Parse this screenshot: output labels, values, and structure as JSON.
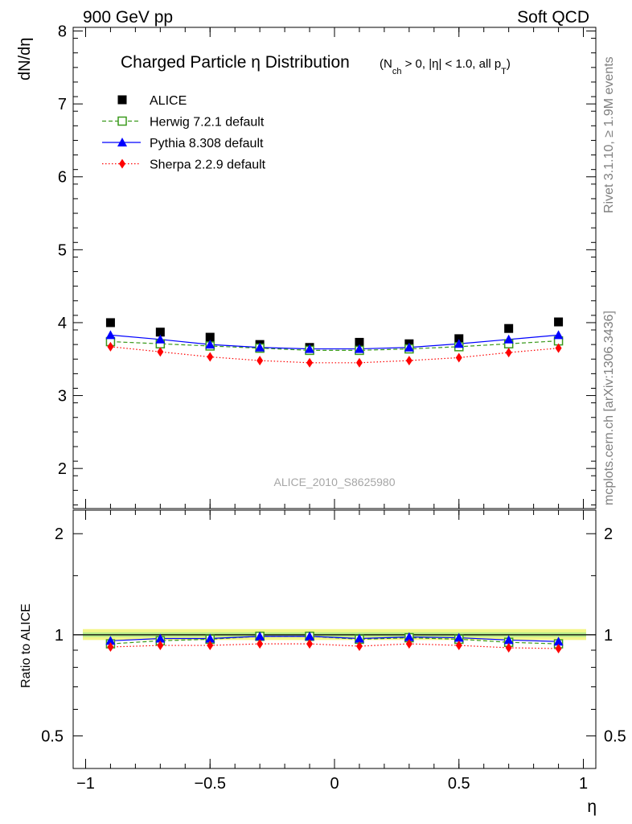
{
  "header": {
    "left": "900 GeV pp",
    "right": "Soft QCD"
  },
  "side": {
    "rivet": "Rivet 3.1.10, ≥ 1.9M events",
    "source": "mcplots.cern.ch [arXiv:1306.3436]"
  },
  "chart_data": [
    {
      "type": "scatter",
      "title_main": "Charged Particle η Distribution",
      "title_cut_parts": {
        "open": "(N",
        "sub1": "ch",
        "mid": " > 0, |η| < 1.0, all p",
        "sub2": "T",
        "close": ")"
      },
      "ylabel": "dN/dη",
      "xlabel": "η",
      "analysis": "ALICE_2010_S8625980",
      "xlim": [
        -1.05,
        1.05
      ],
      "ylim": [
        1.45,
        8.05
      ],
      "yticks": [
        2,
        3,
        4,
        5,
        6,
        7,
        8
      ],
      "x": [
        -0.9,
        -0.7,
        -0.5,
        -0.3,
        -0.1,
        0.1,
        0.3,
        0.5,
        0.7,
        0.9
      ],
      "series": [
        {
          "name": "ALICE",
          "color": "#000000",
          "marker": "square",
          "line": "none",
          "values": [
            4.0,
            3.87,
            3.8,
            3.7,
            3.66,
            3.73,
            3.71,
            3.78,
            3.92,
            4.01
          ]
        },
        {
          "name": "Herwig 7.2.1 default",
          "color": "#3a9a1c",
          "marker": "open-square",
          "line": "dashed",
          "values": [
            3.74,
            3.71,
            3.68,
            3.65,
            3.62,
            3.62,
            3.64,
            3.67,
            3.71,
            3.75
          ]
        },
        {
          "name": "Pythia 8.308 default",
          "color": "#0000ff",
          "marker": "triangle",
          "line": "solid",
          "values": [
            3.83,
            3.77,
            3.7,
            3.66,
            3.64,
            3.64,
            3.66,
            3.71,
            3.77,
            3.83
          ]
        },
        {
          "name": "Sherpa 2.2.9 default",
          "color": "#ff0000",
          "marker": "diamond",
          "line": "dotted",
          "values": [
            3.67,
            3.6,
            3.53,
            3.48,
            3.45,
            3.45,
            3.48,
            3.52,
            3.59,
            3.65
          ]
        }
      ]
    },
    {
      "type": "scatter",
      "ylabel": "Ratio to ALICE",
      "xlabel": "η",
      "log_y": true,
      "xlim": [
        -1.05,
        1.05
      ],
      "ylim": [
        0.4,
        2.35
      ],
      "yticks": [
        0.5,
        1,
        2
      ],
      "xticks": [
        -1,
        -0.5,
        0,
        0.5,
        1
      ],
      "xtick_labels": [
        "−1",
        "−0.5",
        "0",
        "0.5",
        "1"
      ],
      "x": [
        -0.9,
        -0.7,
        -0.5,
        -0.3,
        -0.1,
        0.1,
        0.3,
        0.5,
        0.7,
        0.9
      ],
      "band": {
        "yellow": [
          0.965,
          1.04
        ],
        "green": [
          0.985,
          1.017
        ]
      },
      "series": [
        {
          "name": "Herwig 7.2.1 default",
          "color": "#3a9a1c",
          "marker": "open-square",
          "line": "dashed",
          "values": [
            0.94,
            0.96,
            0.97,
            0.99,
            0.99,
            0.97,
            0.98,
            0.97,
            0.95,
            0.94
          ]
        },
        {
          "name": "Pythia 8.308 default",
          "color": "#0000ff",
          "marker": "triangle",
          "line": "solid",
          "values": [
            0.96,
            0.975,
            0.975,
            0.99,
            0.99,
            0.975,
            0.985,
            0.98,
            0.965,
            0.955
          ]
        },
        {
          "name": "Sherpa 2.2.9 default",
          "color": "#ff0000",
          "marker": "diamond",
          "line": "dotted",
          "values": [
            0.92,
            0.93,
            0.93,
            0.94,
            0.94,
            0.925,
            0.94,
            0.93,
            0.915,
            0.91
          ]
        }
      ]
    }
  ]
}
